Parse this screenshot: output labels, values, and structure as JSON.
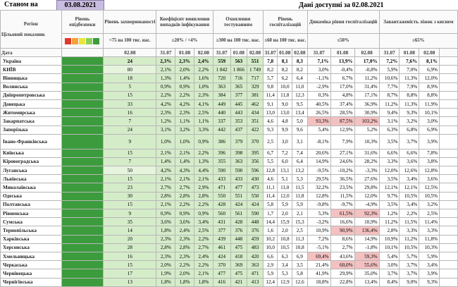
{
  "header": {
    "as_of_label": "Станом на",
    "as_of_date": "03.08.2021",
    "available": "Дані доступні за 02.08.2021"
  },
  "columns": {
    "region": "Регіон",
    "indicator": "Цільовий показник",
    "date": "Дата",
    "safety": "Рівень епідбезпеки",
    "incidence": "Рівень захворюваності",
    "incidence_target": "<75 на 100 тис. нас.",
    "detection": "Коефіцієнт виявлення випадків інфікування",
    "detection_target": "≥20% / <4%",
    "testing": "Охоплення тестуванням",
    "testing_target": "≥300 на 100 тис. нас.",
    "hosp": "Рівень госпіталізацій",
    "hosp_target": "≤60 на 100 тис. нас.",
    "dynamics": "Динаміка рівня госпіталізацій",
    "dynamics_target": "≤50%",
    "oxygen": "Завантаженість ліжок з киснем",
    "oxygen_target": "≤65%"
  },
  "dates": {
    "incidence": "02.08",
    "d1": "31.07",
    "d2": "01.08",
    "d3": "02.08"
  },
  "colors": {
    "green": "#3c9b3c",
    "light_green": "#d5ecc9",
    "pink": "#f4c1c1",
    "yellow": "#e8e63a",
    "orange": "#f3a23a",
    "red": "#e2382b"
  },
  "ukraine": {
    "name": "Україна",
    "incidence": "24",
    "detection": [
      "2,3%",
      "2,3%",
      "2,4%"
    ],
    "testing": [
      "559",
      "563",
      "551"
    ],
    "hosp": [
      "7,8",
      "8,1",
      "8,3"
    ],
    "dynamics": [
      "7,1%",
      "13,9%",
      "17,0%"
    ],
    "oxygen": [
      "7,2%",
      "7,6%",
      "8,1%"
    ]
  },
  "rows": [
    {
      "name": "КИЇВ",
      "incidence": "80",
      "detection": [
        "2,1%",
        "2,0%",
        "2,2%"
      ],
      "testing": [
        "1 842",
        "1 866",
        "1 749"
      ],
      "hosp": [
        "8,2",
        "8,2",
        "8,2"
      ],
      "dynamics": [
        "3,0%",
        "-0,4%",
        "-0,8%"
      ],
      "oxygen": [
        "5,9%",
        "7,0%",
        "6,9%"
      ],
      "inc_bg": "lg2"
    },
    {
      "name": "Вінницька",
      "incidence": "18",
      "detection": [
        "1,3%",
        "1,4%",
        "1,6%"
      ],
      "testing": [
        "720",
        "716",
        "717"
      ],
      "hosp": [
        "5,7",
        "6,2",
        "6,4"
      ],
      "dynamics": [
        "-1,1%",
        "6,7%",
        "11,2%"
      ],
      "oxygen": [
        "10,6%",
        "11,3%",
        "12,0%"
      ],
      "inc_bg": "lg"
    },
    {
      "name": "Волинська",
      "incidence": "5",
      "detection": [
        "0,9%",
        "0,9%",
        "1,0%"
      ],
      "testing": [
        "363",
        "365",
        "329"
      ],
      "hosp": [
        "9,8",
        "10,0",
        "11,0"
      ],
      "dynamics": [
        "-2,9%",
        "17,0%",
        "31,4%"
      ],
      "oxygen": [
        "7,7%",
        "7,9%",
        "8,9%"
      ],
      "inc_bg": "lg"
    },
    {
      "name": "Дніпропетровська",
      "incidence": "15",
      "detection": [
        "2,2%",
        "2,2%",
        "2,3%"
      ],
      "testing": [
        "384",
        "377",
        "381"
      ],
      "hosp": [
        "11,4",
        "11,8",
        "12,3"
      ],
      "dynamics": [
        "0,3%",
        "4,8%",
        "17,1%"
      ],
      "oxygen": [
        "8,7%",
        "8,8%",
        "8,8%"
      ],
      "inc_bg": "lg"
    },
    {
      "name": "Донецька",
      "incidence": "33",
      "detection": [
        "4,2%",
        "4,2%",
        "4,1%"
      ],
      "testing": [
        "449",
        "445",
        "462"
      ],
      "hosp": [
        "9,1",
        "9,0",
        "9,5"
      ],
      "dynamics": [
        "40,5%",
        "37,4%",
        "36,9%"
      ],
      "oxygen": [
        "11,2%",
        "11,3%",
        "11,9%"
      ],
      "inc_bg": "lg"
    },
    {
      "name": "Житомирська",
      "incidence": "16",
      "detection": [
        "2,3%",
        "2,3%",
        "2,5%"
      ],
      "testing": [
        "440",
        "443",
        "434"
      ],
      "hosp": [
        "13,0",
        "13,0",
        "13,4"
      ],
      "dynamics": [
        "26,5%",
        "28,5%",
        "30,9%"
      ],
      "oxygen": [
        "9,4%",
        "9,3%",
        "10,1%"
      ],
      "inc_bg": "lg"
    },
    {
      "name": "Закарпатська",
      "incidence": "7",
      "detection": [
        "1,2%",
        "1,1%",
        "1,1%"
      ],
      "testing": [
        "337",
        "353",
        "351"
      ],
      "hosp": [
        "4,6",
        "4,8",
        "5,0"
      ],
      "dynamics": [
        "93,3%",
        "87,5%",
        "103,2%"
      ],
      "oxygen": [
        "3,1%",
        "3,2%",
        "3,0%"
      ],
      "inc_bg": "lg",
      "pink": true
    },
    {
      "name": "Запорізька",
      "incidence": "24",
      "detection": [
        "3,1%",
        "3,2%",
        "3,3%"
      ],
      "testing": [
        "442",
        "437",
        "422"
      ],
      "hosp": [
        "9,3",
        "9,9",
        "9,6"
      ],
      "dynamics": [
        "5,4%",
        "12,9%",
        "5,2%"
      ],
      "oxygen": [
        "6,3%",
        "6,8%",
        "6,9%"
      ],
      "inc_bg": "lg"
    },
    {
      "name": "Івано-Франківська",
      "incidence": "9",
      "detection": [
        "1,0%",
        "1,0%",
        "0,9%"
      ],
      "testing": [
        "386",
        "379",
        "370"
      ],
      "hosp": [
        "2,5",
        "3,0",
        "3,1"
      ],
      "dynamics": [
        "-8,1%",
        "7,9%",
        "10,3%"
      ],
      "oxygen": [
        "3,5%",
        "3,7%",
        "3,9%"
      ],
      "inc_bg": "lg",
      "tall": true
    },
    {
      "name": "Київська",
      "incidence": "15",
      "detection": [
        "2,1%",
        "2,1%",
        "2,2%"
      ],
      "testing": [
        "396",
        "398",
        "395"
      ],
      "hosp": [
        "6,7",
        "7,2",
        "7,4"
      ],
      "dynamics": [
        "20,6%",
        "27,1%",
        "31,6%"
      ],
      "oxygen": [
        "6,6%",
        "6,6%",
        "7,8%"
      ],
      "inc_bg": "lg"
    },
    {
      "name": "Кіровоградська",
      "incidence": "7",
      "detection": [
        "1,4%",
        "1,4%",
        "1,3%"
      ],
      "testing": [
        "355",
        "363",
        "356"
      ],
      "hosp": [
        "5,5",
        "6,0",
        "6,4"
      ],
      "dynamics": [
        "14,9%",
        "24,6%",
        "28,2%"
      ],
      "oxygen": [
        "3,3%",
        "3,6%",
        "3,8%"
      ],
      "inc_bg": "lg"
    },
    {
      "name": "Луганська",
      "incidence": "50",
      "detection": [
        "4,2%",
        "4,3%",
        "4,4%"
      ],
      "testing": [
        "590",
        "590",
        "596"
      ],
      "hosp": [
        "12,8",
        "13,1",
        "13,2"
      ],
      "dynamics": [
        "-9,5%",
        "-10,2%",
        "-3,3%"
      ],
      "oxygen": [
        "12,0%",
        "12,6%",
        "12,8%"
      ],
      "inc_bg": "lg2"
    },
    {
      "name": "Львівська",
      "incidence": "15",
      "detection": [
        "2,1%",
        "2,1%",
        "2,1%"
      ],
      "testing": [
        "433",
        "433",
        "430"
      ],
      "hosp": [
        "4,6",
        "5,1",
        "5,3"
      ],
      "dynamics": [
        "29,5%",
        "36,5%",
        "27,6%"
      ],
      "oxygen": [
        "3,5%",
        "3,4%",
        "3,6%"
      ],
      "inc_bg": "lg"
    },
    {
      "name": "Миколаївська",
      "incidence": "23",
      "detection": [
        "2,7%",
        "2,7%",
        "2,9%"
      ],
      "testing": [
        "471",
        "477",
        "473"
      ],
      "hosp": [
        "11,1",
        "11,0",
        "11,5"
      ],
      "dynamics": [
        "32,2%",
        "23,5%",
        "29,8%"
      ],
      "oxygen": [
        "12,1%",
        "12,1%",
        "12,5%"
      ],
      "inc_bg": "lg"
    },
    {
      "name": "Одеська",
      "incidence": "30",
      "detection": [
        "2,8%",
        "2,8%",
        "2,8%"
      ],
      "testing": [
        "550",
        "551",
        "550"
      ],
      "hosp": [
        "11,4",
        "12,0",
        "11,8"
      ],
      "dynamics": [
        "12,8%",
        "11,5%",
        "12,0%"
      ],
      "oxygen": [
        "9,7%",
        "10,5%",
        "10,5%"
      ],
      "inc_bg": "lg"
    },
    {
      "name": "Полтавська",
      "incidence": "15",
      "detection": [
        "2,1%",
        "2,2%",
        "2,2%"
      ],
      "testing": [
        "428",
        "424",
        "424"
      ],
      "hosp": [
        "5,8",
        "5,9",
        "5,9"
      ],
      "dynamics": [
        "-9,8%",
        "-9,7%",
        "-4,9%"
      ],
      "oxygen": [
        "3,5%",
        "3,4%",
        "3,2%"
      ],
      "inc_bg": "lg"
    },
    {
      "name": "Рівненська",
      "incidence": "9",
      "detection": [
        "0,9%",
        "0,9%",
        "0,9%"
      ],
      "testing": [
        "560",
        "561",
        "590"
      ],
      "hosp": [
        "1,7",
        "2,0",
        "2,1"
      ],
      "dynamics": [
        "5,3%",
        "61,5%",
        "92,3%"
      ],
      "oxygen": [
        "1,2%",
        "2,2%",
        "2,5%"
      ],
      "inc_bg": "lg",
      "pink23": true
    },
    {
      "name": "Сумська",
      "incidence": "35",
      "detection": [
        "3,6%",
        "3,6%",
        "3,4%"
      ],
      "testing": [
        "431",
        "428",
        "448"
      ],
      "hosp": [
        "14,4",
        "15,9",
        "15,3"
      ],
      "dynamics": [
        "-3,2%",
        "16,6%",
        "10,9%"
      ],
      "oxygen": [
        "11,2%",
        "11,5%",
        "11,4%"
      ],
      "inc_bg": "lg"
    },
    {
      "name": "Тернопільська",
      "incidence": "14",
      "detection": [
        "1,8%",
        "2,4%",
        "2,5%"
      ],
      "testing": [
        "377",
        "376",
        "376"
      ],
      "hosp": [
        "1,6",
        "2,0",
        "2,5"
      ],
      "dynamics": [
        "10,9%",
        "90,9%",
        "136,4%"
      ],
      "oxygen": [
        "2,8%",
        "3,3%",
        "3,3%"
      ],
      "inc_bg": "lg",
      "pink23": true
    },
    {
      "name": "Харківська",
      "incidence": "20",
      "detection": [
        "2,3%",
        "2,3%",
        "2,2%"
      ],
      "testing": [
        "439",
        "448",
        "459"
      ],
      "hosp": [
        "10,2",
        "10,8",
        "11,3"
      ],
      "dynamics": [
        "7,2%",
        "8,6%",
        "14,9%"
      ],
      "oxygen": [
        "10,9%",
        "11,2%",
        "11,8%"
      ],
      "inc_bg": "lg"
    },
    {
      "name": "Херсонська",
      "incidence": "28",
      "detection": [
        "2,8%",
        "2,8%",
        "2,7%"
      ],
      "testing": [
        "461",
        "475",
        "483"
      ],
      "hosp": [
        "10,0",
        "10,5",
        "10,8"
      ],
      "dynamics": [
        "-5,1%",
        "2,7%",
        "-1,8%"
      ],
      "oxygen": [
        "10,1%",
        "10,5%",
        "10,3%"
      ],
      "inc_bg": "lg"
    },
    {
      "name": "Хмельницька",
      "incidence": "16",
      "detection": [
        "2,3%",
        "2,3%",
        "2,4%"
      ],
      "testing": [
        "424",
        "418",
        "420"
      ],
      "hosp": [
        "6,6",
        "6,3",
        "6,9"
      ],
      "dynamics": [
        "69,4%",
        "43,6%",
        "59,3%"
      ],
      "oxygen": [
        "5,4%",
        "5,7%",
        "5,9%"
      ],
      "inc_bg": "lg",
      "pink13": true
    },
    {
      "name": "Черкаська",
      "incidence": "15",
      "detection": [
        "2,0%",
        "2,2%",
        "2,2%"
      ],
      "testing": [
        "370",
        "369",
        "363"
      ],
      "hosp": [
        "2,9",
        "3,4",
        "3,5"
      ],
      "dynamics": [
        "21,4%",
        "60,0%",
        "55,6%"
      ],
      "oxygen": [
        "3,0%",
        "3,7%",
        "3,4%"
      ],
      "inc_bg": "lg",
      "pink23": true
    },
    {
      "name": "Чернівецька",
      "incidence": "17",
      "detection": [
        "1,9%",
        "2,0%",
        "2,1%"
      ],
      "testing": [
        "477",
        "475",
        "471"
      ],
      "hosp": [
        "5,9",
        "5,3",
        "5,8"
      ],
      "dynamics": [
        "41,9%",
        "29,9%",
        "35,0%"
      ],
      "oxygen": [
        "3,7%",
        "3,7%",
        "3,9%"
      ],
      "inc_bg": "lg"
    },
    {
      "name": "Чернігівська",
      "incidence": "13",
      "detection": [
        "1,8%",
        "1,8%",
        "1,8%"
      ],
      "testing": [
        "416",
        "421",
        "413"
      ],
      "hosp": [
        "12,4",
        "12,9",
        "12,6"
      ],
      "dynamics": [
        "18,8%",
        "22,8%",
        "13,4%"
      ],
      "oxygen": [
        "8,4%",
        "9,0%",
        "9,3%"
      ],
      "inc_bg": "lg"
    }
  ]
}
